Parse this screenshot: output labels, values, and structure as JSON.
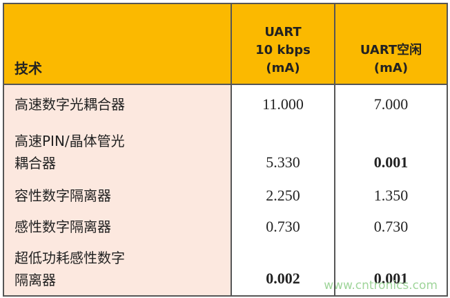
{
  "table": {
    "header": [
      "技术",
      "UART\n10 kbps\n(mA)",
      "UART空闲\n(mA)"
    ],
    "rows": [
      {
        "label": "高速数字光耦合器",
        "values": [
          "11.000",
          "7.000"
        ],
        "bold": [
          false,
          false
        ]
      },
      {
        "label": "高速PIN/晶体管光\n耦合器",
        "values": [
          "5.330",
          "0.001"
        ],
        "bold": [
          false,
          true
        ]
      },
      {
        "label": "容性数字隔离器",
        "values": [
          "2.250",
          "1.350"
        ],
        "bold": [
          false,
          false
        ]
      },
      {
        "label": "感性数字隔离器",
        "values": [
          "0.730",
          "0.730"
        ],
        "bold": [
          false,
          false
        ]
      },
      {
        "label": "超低功耗感性数字\n隔离器",
        "values": [
          "0.002",
          "0.001"
        ],
        "bold": [
          true,
          true
        ]
      }
    ]
  },
  "watermark": "www.cntronics.com"
}
